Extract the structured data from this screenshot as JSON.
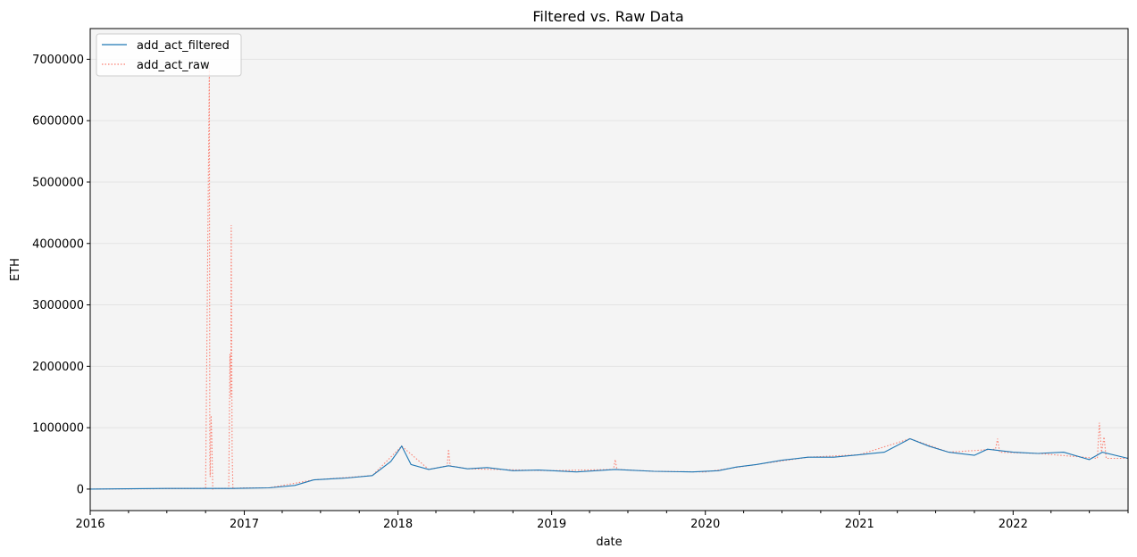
{
  "chart_data": {
    "type": "line",
    "title": "Filtered vs. Raw Data",
    "xlabel": "date",
    "ylabel": "ETH",
    "xlim": [
      "2016-01-01",
      "2022-10-01"
    ],
    "ylim": [
      -350000,
      7500000
    ],
    "x_ticks": [
      "2016-01-01",
      "2017-01-01",
      "2018-01-01",
      "2019-01-01",
      "2020-01-01",
      "2021-01-01",
      "2022-01-01"
    ],
    "x_tick_labels": [
      "2016",
      "2017",
      "2018",
      "2019",
      "2020",
      "2021",
      "2022"
    ],
    "y_ticks": [
      0,
      1000000,
      2000000,
      3000000,
      4000000,
      5000000,
      6000000,
      7000000
    ],
    "y_tick_labels": [
      "0",
      "1000000",
      "2000000",
      "3000000",
      "4000000",
      "5000000",
      "6000000",
      "7000000"
    ],
    "grid": "horizontal",
    "legend_position": "top-left",
    "series": [
      {
        "name": "add_act_filtered",
        "color": "#1f77b4",
        "style": "solid",
        "x": [
          "2016-01-01",
          "2016-07-01",
          "2016-12-01",
          "2017-03-01",
          "2017-05-01",
          "2017-06-15",
          "2017-09-01",
          "2017-11-01",
          "2017-12-15",
          "2018-01-10",
          "2018-02-01",
          "2018-03-15",
          "2018-05-01",
          "2018-06-15",
          "2018-08-01",
          "2018-10-01",
          "2018-12-01",
          "2019-03-01",
          "2019-06-01",
          "2019-09-01",
          "2019-12-01",
          "2020-02-01",
          "2020-03-15",
          "2020-05-01",
          "2020-07-01",
          "2020-09-01",
          "2020-11-01",
          "2021-01-01",
          "2021-03-01",
          "2021-05-01",
          "2021-06-15",
          "2021-08-01",
          "2021-10-01",
          "2021-11-01",
          "2022-01-01",
          "2022-03-01",
          "2022-05-01",
          "2022-07-01",
          "2022-08-01",
          "2022-10-01"
        ],
        "values": [
          0,
          10000,
          10000,
          20000,
          60000,
          150000,
          180000,
          220000,
          450000,
          700000,
          400000,
          320000,
          380000,
          330000,
          350000,
          300000,
          310000,
          280000,
          320000,
          290000,
          280000,
          300000,
          360000,
          400000,
          470000,
          520000,
          520000,
          560000,
          600000,
          820000,
          700000,
          600000,
          550000,
          650000,
          600000,
          580000,
          600000,
          480000,
          600000,
          500000
        ]
      },
      {
        "name": "add_act_raw",
        "color": "#fa8072",
        "style": "dotted",
        "x": [
          "2016-01-01",
          "2016-10-01",
          "2016-10-10",
          "2016-10-11",
          "2016-10-12",
          "2016-10-14",
          "2016-10-16",
          "2016-10-18",
          "2016-10-25",
          "2016-11-25",
          "2016-11-28",
          "2016-11-30",
          "2016-12-01",
          "2016-12-03",
          "2016-12-05",
          "2016-12-08",
          "2017-01-01",
          "2017-03-01",
          "2017-06-15",
          "2017-11-01",
          "2018-01-10",
          "2018-03-15",
          "2018-04-28",
          "2018-05-01",
          "2018-05-05",
          "2018-06-15",
          "2019-01-01",
          "2019-05-28",
          "2019-06-01",
          "2019-06-05",
          "2019-09-01",
          "2020-01-01",
          "2020-05-01",
          "2020-09-01",
          "2021-01-01",
          "2021-05-01",
          "2021-08-01",
          "2021-11-20",
          "2021-11-25",
          "2021-11-30",
          "2022-03-01",
          "2022-07-20",
          "2022-07-25",
          "2022-07-30",
          "2022-08-05",
          "2022-08-10",
          "2022-10-01"
        ],
        "values": [
          0,
          10000,
          6900000,
          500000,
          200000,
          1200000,
          800000,
          0,
          10000,
          10000,
          2200000,
          1500000,
          4300000,
          600000,
          0,
          10000,
          20000,
          20000,
          150000,
          220000,
          700000,
          320000,
          380000,
          650000,
          380000,
          330000,
          300000,
          320000,
          480000,
          320000,
          290000,
          280000,
          400000,
          520000,
          560000,
          820000,
          600000,
          650000,
          820000,
          600000,
          580000,
          500000,
          1080000,
          600000,
          850000,
          500000,
          500000
        ]
      }
    ]
  }
}
